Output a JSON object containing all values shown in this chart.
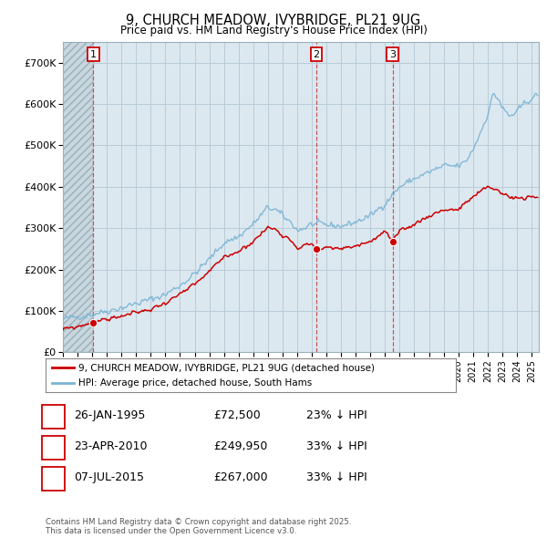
{
  "title1": "9, CHURCH MEADOW, IVYBRIDGE, PL21 9UG",
  "title2": "Price paid vs. HM Land Registry's House Price Index (HPI)",
  "ylim": [
    0,
    750000
  ],
  "yticks": [
    0,
    100000,
    200000,
    300000,
    400000,
    500000,
    600000,
    700000
  ],
  "ytick_labels": [
    "£0",
    "£100K",
    "£200K",
    "£300K",
    "£400K",
    "£500K",
    "£600K",
    "£700K"
  ],
  "hpi_color": "#7ab4d4",
  "price_color": "#cc0000",
  "bg_color": "#dce8f0",
  "hatch_region_color": "#c5d5e0",
  "grid_color": "#b8ccd8",
  "sale_points": [
    {
      "year": 1995.07,
      "price": 72500,
      "label": "1"
    },
    {
      "year": 2010.31,
      "price": 249950,
      "label": "2"
    },
    {
      "year": 2015.51,
      "price": 267000,
      "label": "3"
    }
  ],
  "vline_color": "#cc4444",
  "legend_house_label": "9, CHURCH MEADOW, IVYBRIDGE, PL21 9UG (detached house)",
  "legend_hpi_label": "HPI: Average price, detached house, South Hams",
  "table_rows": [
    {
      "num": "1",
      "date": "26-JAN-1995",
      "price": "£72,500",
      "pct": "23% ↓ HPI"
    },
    {
      "num": "2",
      "date": "23-APR-2010",
      "price": "£249,950",
      "pct": "33% ↓ HPI"
    },
    {
      "num": "3",
      "date": "07-JUL-2015",
      "price": "£267,000",
      "pct": "33% ↓ HPI"
    }
  ],
  "footnote": "Contains HM Land Registry data © Crown copyright and database right 2025.\nThis data is licensed under the Open Government Licence v3.0.",
  "xstart": 1993,
  "xend": 2025.5
}
